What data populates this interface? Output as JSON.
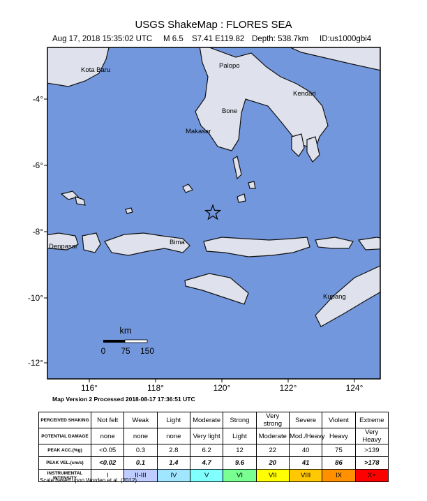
{
  "header": {
    "title": "USGS ShakeMap : FLORES SEA",
    "date": "Aug 17, 2018 15:35:02 UTC",
    "magnitude": "M 6.5",
    "location": "S7.41 E119.82",
    "depth": "Depth: 538.7km",
    "id": "ID:us1000gbi4"
  },
  "map": {
    "lon_ticks": [
      "116°",
      "118°",
      "120°",
      "122°",
      "124°"
    ],
    "lat_ticks": [
      "-4°",
      "-6°",
      "-8°",
      "-10°",
      "-12°"
    ],
    "places": [
      "Kota Baru",
      "Palopo",
      "Kendari",
      "Bone",
      "Makasar",
      "Bima",
      "Denpasar",
      "Kupang"
    ],
    "scale": {
      "unit": "km",
      "labels": [
        "0",
        "75",
        "150"
      ]
    }
  },
  "version": "Map Version 2 Processed 2018-08-17 17:36:51 UTC",
  "table": {
    "rows": [
      [
        "PERCEIVED SHAKING",
        "Not felt",
        "Weak",
        "Light",
        "Moderate",
        "Strong",
        "Very strong",
        "Severe",
        "Violent",
        "Extreme"
      ],
      [
        "POTENTIAL DAMAGE",
        "none",
        "none",
        "none",
        "Very light",
        "Light",
        "Moderate",
        "Mod./Heavy",
        "Heavy",
        "Very Heavy"
      ],
      [
        "PEAK ACC.(%g)",
        "<0.05",
        "0.3",
        "2.8",
        "6.2",
        "12",
        "22",
        "40",
        "75",
        ">139"
      ],
      [
        "PEAK VEL.(cm/s)",
        "<0.02",
        "0.1",
        "1.4",
        "4.7",
        "9.6",
        "20",
        "41",
        "86",
        ">178"
      ],
      [
        "INSTRUMENTAL INTENSITY",
        "I",
        "II-III",
        "IV",
        "V",
        "VI",
        "VII",
        "VIII",
        "IX",
        "X+"
      ]
    ]
  },
  "footnote": "Scale based upon Worden et al. (2012)"
}
